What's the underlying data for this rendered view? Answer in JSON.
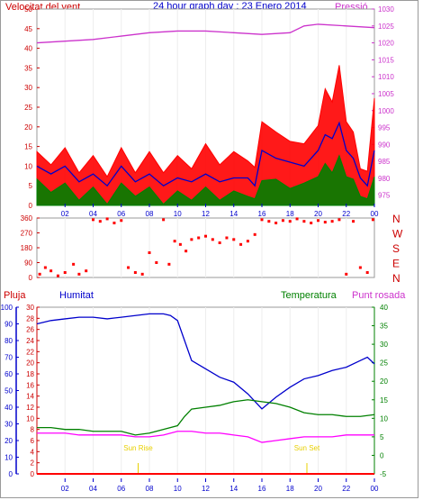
{
  "title": "24 hour graph day : 23 Enero 2014",
  "time_ticks": [
    "02",
    "04",
    "06",
    "08",
    "10",
    "12",
    "14",
    "16",
    "18",
    "20",
    "22",
    "00"
  ],
  "colors": {
    "frame": "#9a9a9a",
    "wind_gust": "#ff0000",
    "wind_avg": "#0000cc",
    "wind_min": "#008000",
    "pressure": "#cc33cc",
    "direction": "#ff0000",
    "humidity": "#0000cc",
    "temperature": "#008000",
    "dewpoint": "#ff00ff",
    "rain": "#ff0000",
    "sun": "#e8d000",
    "label_red": "#cc0000",
    "label_blue": "#0000cc",
    "label_green": "#008000",
    "label_magenta": "#cc33cc",
    "grid": "#ffffff"
  },
  "panel1": {
    "left_label": "Velocitat del vent",
    "right_label": "Pressió",
    "left_ticks": [
      "0",
      "5",
      "10",
      "15",
      "20",
      "25",
      "30",
      "35",
      "40",
      "45",
      "50"
    ],
    "right_ticks": [
      "975",
      "980",
      "985",
      "990",
      "995",
      "1000",
      "1005",
      "1010",
      "1015",
      "1020",
      "1025",
      "1030"
    ]
  },
  "panel2": {
    "left_ticks": [
      "0",
      "90",
      "180",
      "270",
      "360"
    ],
    "right_labels": [
      "N",
      "W",
      "S",
      "E",
      "N"
    ]
  },
  "panel3": {
    "labels": {
      "rain": "Pluja",
      "humidity": "Humitat",
      "temperature": "Temperatura",
      "dewpoint": "Punt rosada"
    },
    "outer_left_ticks": [
      "0",
      "10",
      "20",
      "30",
      "40",
      "50",
      "60",
      "70",
      "80",
      "90",
      "100"
    ],
    "inner_left_ticks": [
      "0",
      "2",
      "4",
      "6",
      "8",
      "10",
      "12",
      "14",
      "16",
      "18",
      "20",
      "22",
      "24",
      "26",
      "28",
      "30"
    ],
    "right_ticks": [
      "-5",
      "0",
      "5",
      "10",
      "15",
      "20",
      "25",
      "30",
      "35",
      "40"
    ],
    "sun_labels": [
      "Sun Rise",
      "Sun Set"
    ]
  },
  "chart_data": [
    {
      "type": "line",
      "title": "24 hour graph day : 23 Enero 2014",
      "x_label": "",
      "x_range_hours": [
        0,
        24
      ],
      "y_left_label": "Velocitat del vent",
      "y_left_range": [
        0,
        50
      ],
      "y_right_label": "Pressió",
      "y_right_range": [
        972,
        1030
      ],
      "series": [
        {
          "name": "gust",
          "axis": "left",
          "x": [
            0,
            1,
            2,
            3,
            4,
            5,
            6,
            7,
            8,
            9,
            10,
            11,
            12,
            13,
            14,
            15,
            15.5,
            16,
            17,
            18,
            19,
            20,
            20.5,
            21,
            21.5,
            22,
            22.5,
            23,
            23.5,
            24
          ],
          "y": [
            13,
            11,
            14,
            9,
            12,
            8,
            14,
            9,
            13,
            9,
            12,
            10,
            15,
            11,
            13,
            12,
            9,
            22,
            18,
            17,
            15,
            21,
            29,
            27,
            35,
            22,
            18,
            10,
            8,
            28
          ]
        },
        {
          "name": "average",
          "axis": "left",
          "x": [
            0,
            1,
            2,
            3,
            4,
            5,
            6,
            7,
            8,
            9,
            10,
            11,
            12,
            13,
            14,
            15,
            15.5,
            16,
            17,
            18,
            19,
            20,
            20.5,
            21,
            21.5,
            22,
            22.5,
            23,
            23.5,
            24
          ],
          "y": [
            10,
            8,
            10,
            6,
            8,
            5,
            10,
            6,
            8,
            5,
            7,
            6,
            8,
            6,
            7,
            7,
            5,
            14,
            12,
            11,
            10,
            14,
            18,
            17,
            21,
            14,
            12,
            7,
            5,
            14
          ]
        },
        {
          "name": "minimum",
          "axis": "left",
          "x": [
            0,
            1,
            2,
            3,
            4,
            5,
            6,
            7,
            8,
            9,
            10,
            11,
            12,
            13,
            14,
            15,
            15.5,
            16,
            17,
            18,
            19,
            20,
            20.5,
            21,
            21.5,
            22,
            22.5,
            23,
            23.5,
            24
          ],
          "y": [
            6,
            4,
            5,
            2,
            4,
            1,
            5,
            3,
            4,
            1,
            3,
            2,
            4,
            2,
            3,
            3,
            1,
            7,
            6,
            5,
            5,
            8,
            10,
            9,
            12,
            8,
            6,
            3,
            1,
            8
          ]
        },
        {
          "name": "pressure",
          "axis": "right",
          "x": [
            0,
            2,
            4,
            6,
            8,
            10,
            12,
            14,
            16,
            18,
            19,
            20,
            22,
            24
          ],
          "y": [
            1020,
            1020.5,
            1021,
            1022,
            1023,
            1023.5,
            1023.5,
            1023,
            1022.5,
            1023,
            1025,
            1025.5,
            1025,
            1024.5
          ]
        }
      ]
    },
    {
      "type": "scatter",
      "title": "",
      "y_left_label": "",
      "y_range": [
        0,
        360
      ],
      "x_range_hours": [
        0,
        24
      ],
      "series": [
        {
          "name": "direction",
          "x": [
            0.2,
            0.6,
            1.0,
            1.5,
            2.0,
            2.6,
            3.0,
            3.5,
            4.0,
            4.5,
            5.0,
            5.5,
            6.0,
            6.5,
            7.0,
            7.5,
            8.0,
            8.5,
            9.0,
            9.4,
            9.8,
            10.2,
            10.6,
            11.0,
            11.5,
            12.0,
            12.5,
            13.0,
            13.5,
            14.0,
            14.5,
            15.0,
            15.5,
            16.0,
            16.5,
            17.0,
            17.5,
            18.0,
            18.5,
            19.0,
            19.5,
            20.0,
            20.5,
            21.0,
            21.5,
            22.0,
            22.5,
            23.0,
            23.5,
            23.9
          ],
          "y": [
            20,
            60,
            40,
            10,
            30,
            80,
            20,
            40,
            350,
            340,
            355,
            330,
            345,
            60,
            30,
            20,
            150,
            90,
            350,
            80,
            220,
            200,
            160,
            230,
            240,
            250,
            230,
            210,
            240,
            230,
            200,
            220,
            260,
            350,
            340,
            330,
            345,
            340,
            355,
            340,
            330,
            345,
            335,
            340,
            350,
            20,
            340,
            60,
            30,
            350
          ]
        }
      ]
    },
    {
      "type": "line",
      "title": "",
      "x_range_hours": [
        0,
        24
      ],
      "y_left_range": [
        0,
        100
      ],
      "y_right_range": [
        -5,
        40
      ],
      "series": [
        {
          "name": "humidity",
          "axis": "left",
          "x": [
            0,
            1,
            2,
            3,
            4,
            5,
            6,
            7,
            8,
            9,
            9.5,
            10,
            10.5,
            11,
            12,
            13,
            14,
            15,
            16,
            17,
            18,
            19,
            20,
            21,
            22,
            23,
            23.5,
            24
          ],
          "y": [
            90,
            92,
            93,
            94,
            94,
            93,
            94,
            95,
            96,
            96,
            95,
            92,
            80,
            68,
            63,
            58,
            55,
            48,
            39,
            46,
            52,
            57,
            59,
            62,
            64,
            68,
            70,
            66
          ]
        },
        {
          "name": "temperature",
          "axis": "right",
          "x": [
            0,
            1,
            2,
            3,
            4,
            5,
            6,
            7,
            8,
            9,
            10,
            10.5,
            11,
            12,
            13,
            14,
            15,
            16,
            17,
            18,
            19,
            20,
            21,
            22,
            23,
            24
          ],
          "y": [
            7.5,
            7.5,
            7,
            7,
            6.5,
            6.5,
            6.5,
            5.5,
            6,
            7,
            8,
            10.5,
            12.5,
            13,
            13.5,
            14.5,
            15,
            14.5,
            14,
            13,
            11.5,
            11,
            11,
            10.5,
            10.5,
            11
          ]
        },
        {
          "name": "dewpoint",
          "axis": "right",
          "x": [
            0,
            1,
            2,
            3,
            4,
            5,
            6,
            7,
            8,
            9,
            10,
            10.5,
            11,
            12,
            13,
            14,
            15,
            16,
            17,
            18,
            19,
            20,
            21,
            22,
            23,
            24
          ],
          "y": [
            6,
            6,
            6,
            5.5,
            5.5,
            5.5,
            5.5,
            5,
            5,
            5.5,
            6.5,
            6.5,
            6.5,
            6,
            6,
            5.5,
            5,
            3.5,
            4,
            4.5,
            5,
            5,
            5,
            5.5,
            5.5,
            5.5
          ]
        },
        {
          "name": "rain",
          "axis": "inner_left",
          "x": [
            0,
            24
          ],
          "y": [
            0,
            0
          ]
        }
      ]
    }
  ]
}
